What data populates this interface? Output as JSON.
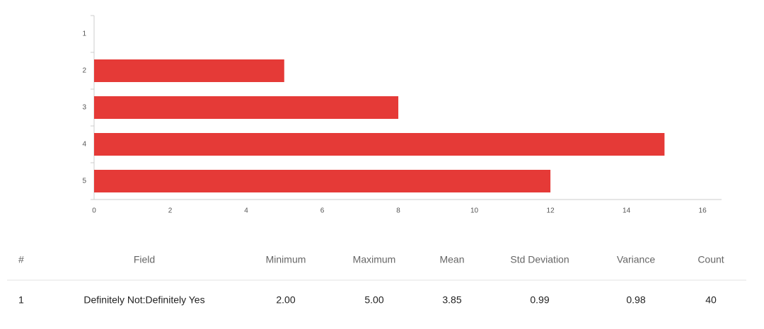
{
  "chart_data": {
    "type": "hbar",
    "categories": [
      "1",
      "2",
      "3",
      "4",
      "5"
    ],
    "values": [
      0,
      5,
      8,
      15,
      12
    ],
    "color": "#e53a37",
    "xlim": [
      0,
      16.5
    ],
    "xticks": [
      0,
      2,
      4,
      6,
      8,
      10,
      12,
      14,
      16
    ],
    "grid": false
  },
  "table": {
    "headers": [
      "#",
      "Field",
      "Minimum",
      "Maximum",
      "Mean",
      "Std Deviation",
      "Variance",
      "Count"
    ],
    "rows": [
      [
        "1",
        "Definitely Not:Definitely Yes",
        "2.00",
        "5.00",
        "3.85",
        "0.99",
        "0.98",
        "40"
      ]
    ]
  }
}
